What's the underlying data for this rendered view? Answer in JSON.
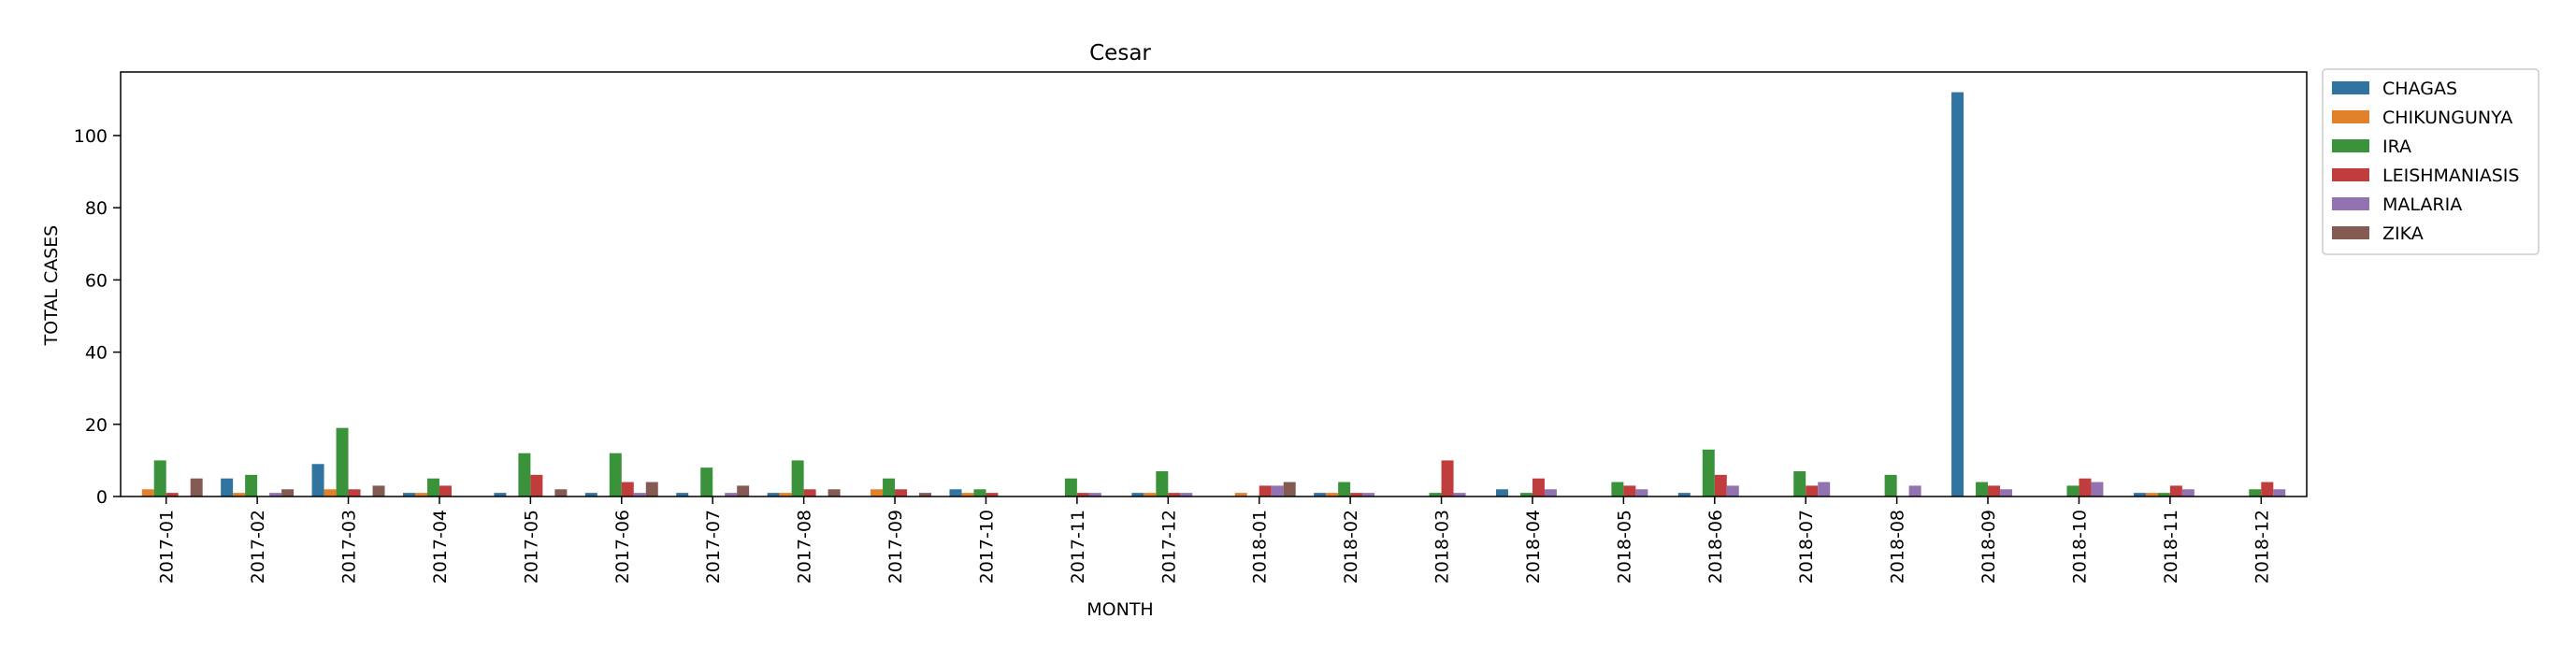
{
  "chart_data": {
    "type": "bar",
    "title": "Cesar",
    "xlabel": "MONTH",
    "ylabel": "TOTAL CASES",
    "ylim": [
      0,
      117.6
    ],
    "yticks": [
      0,
      20,
      40,
      60,
      80,
      100
    ],
    "grid": false,
    "legend_position": "outside-top-right",
    "categories": [
      "2017-01",
      "2017-02",
      "2017-03",
      "2017-04",
      "2017-05",
      "2017-06",
      "2017-07",
      "2017-08",
      "2017-09",
      "2017-10",
      "2017-11",
      "2017-12",
      "2018-01",
      "2018-02",
      "2018-03",
      "2018-04",
      "2018-05",
      "2018-06",
      "2018-07",
      "2018-08",
      "2018-09",
      "2018-10",
      "2018-11",
      "2018-12"
    ],
    "series": [
      {
        "name": "CHAGAS",
        "color": "#3274a1",
        "values": [
          null,
          5,
          9,
          1,
          1,
          1,
          1,
          1,
          null,
          2,
          null,
          1,
          null,
          1,
          null,
          2,
          null,
          1,
          null,
          null,
          112,
          null,
          1,
          null
        ]
      },
      {
        "name": "CHIKUNGUNYA",
        "color": "#e1812c",
        "values": [
          2,
          1,
          2,
          1,
          null,
          null,
          null,
          1,
          2,
          1,
          null,
          1,
          1,
          1,
          null,
          null,
          null,
          null,
          null,
          null,
          null,
          null,
          1,
          null
        ]
      },
      {
        "name": "IRA",
        "color": "#3a923a",
        "values": [
          10,
          6,
          19,
          5,
          12,
          12,
          8,
          10,
          5,
          2,
          5,
          7,
          null,
          4,
          1,
          1,
          4,
          13,
          7,
          6,
          4,
          3,
          1,
          2
        ]
      },
      {
        "name": "LEISHMANIASIS",
        "color": "#c03d3e",
        "values": [
          1,
          null,
          2,
          3,
          6,
          4,
          null,
          2,
          2,
          1,
          1,
          1,
          3,
          1,
          10,
          5,
          3,
          6,
          3,
          null,
          3,
          5,
          3,
          4
        ]
      },
      {
        "name": "MALARIA",
        "color": "#9372b2",
        "values": [
          null,
          1,
          null,
          null,
          null,
          1,
          1,
          null,
          null,
          null,
          1,
          1,
          3,
          1,
          1,
          2,
          2,
          3,
          4,
          3,
          2,
          4,
          2,
          2
        ]
      },
      {
        "name": "ZIKA",
        "color": "#845b53",
        "values": [
          5,
          2,
          3,
          null,
          2,
          4,
          3,
          2,
          1,
          null,
          null,
          null,
          4,
          null,
          null,
          null,
          null,
          null,
          null,
          null,
          null,
          null,
          null,
          null
        ]
      }
    ]
  }
}
